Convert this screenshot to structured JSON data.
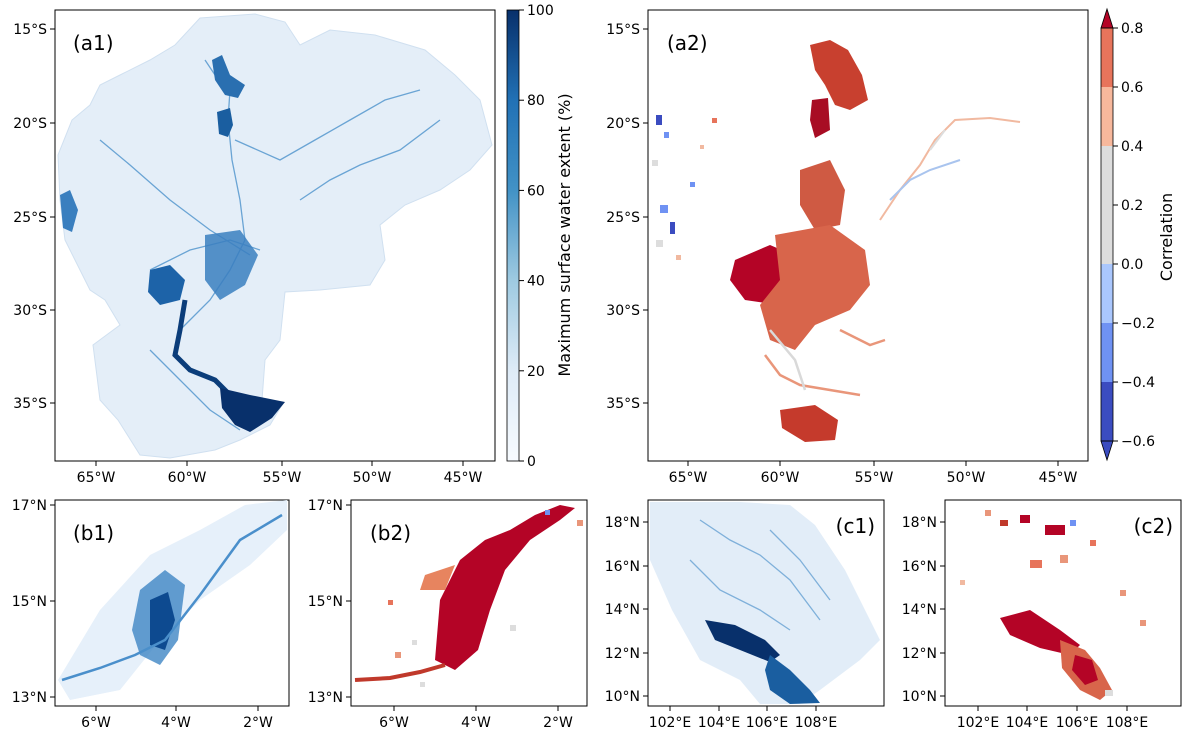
{
  "chart_data": [
    {
      "id": "a1",
      "type": "heatmap",
      "panel_label": "(a1)",
      "xticks": [
        "65°W",
        "60°W",
        "55°W",
        "50°W",
        "45°W"
      ],
      "yticks": [
        "15°S",
        "20°S",
        "25°S",
        "30°S",
        "35°S"
      ],
      "colorbar": {
        "label": "Maximum surface water extent (%)",
        "ticks": [
          "0",
          "20",
          "40",
          "60",
          "80",
          "100"
        ],
        "range": [
          0,
          100
        ],
        "colors": [
          "#f7fbff",
          "#08306b"
        ]
      }
    },
    {
      "id": "a2",
      "type": "heatmap",
      "panel_label": "(a2)",
      "xticks": [
        "65°W",
        "60°W",
        "55°W",
        "50°W",
        "45°W"
      ],
      "yticks": [
        "15°S",
        "20°S",
        "25°S",
        "30°S",
        "35°S"
      ],
      "colorbar": {
        "label": "Correlation",
        "ticks": [
          "−0.6",
          "−0.4",
          "−0.2",
          "0.0",
          "0.2",
          "0.4",
          "0.6",
          "0.8"
        ],
        "range": [
          -0.6,
          0.8
        ],
        "bins": [
          "#3b4cc0",
          "#6f92f3",
          "#aac7fd",
          "#dddddd",
          "#dddddd",
          "#f7b89c",
          "#e7745b",
          "#b40426"
        ],
        "extend": "both"
      }
    },
    {
      "id": "b1",
      "type": "heatmap",
      "panel_label": "(b1)",
      "xticks": [
        "6°W",
        "4°W",
        "2°W"
      ],
      "yticks": [
        "17°N",
        "15°N",
        "13°N"
      ]
    },
    {
      "id": "b2",
      "type": "heatmap",
      "panel_label": "(b2)",
      "xticks": [
        "6°W",
        "4°W",
        "2°W"
      ],
      "yticks": [
        "17°N",
        "15°N",
        "13°N"
      ]
    },
    {
      "id": "c1",
      "type": "heatmap",
      "panel_label": "(c1)",
      "xticks": [
        "102°E",
        "104°E",
        "106°E",
        "108°E"
      ],
      "yticks": [
        "18°N",
        "16°N",
        "14°N",
        "12°N",
        "10°N"
      ]
    },
    {
      "id": "c2",
      "type": "heatmap",
      "panel_label": "(c2)",
      "xticks": [
        "102°E",
        "104°E",
        "106°E",
        "108°E"
      ],
      "yticks": [
        "18°N",
        "16°N",
        "14°N",
        "12°N",
        "10°N"
      ]
    }
  ]
}
